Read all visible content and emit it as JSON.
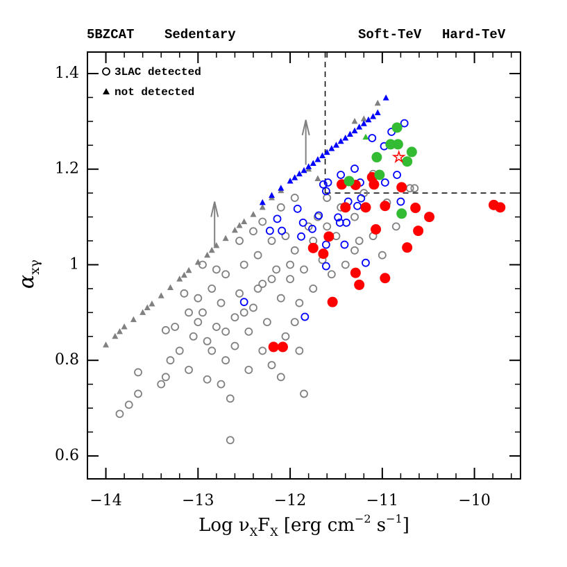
{
  "chart_data": {
    "type": "scatter",
    "xlabel": [
      "Log ν",
      "X",
      "F",
      "X",
      "  [erg cm",
      "−2",
      " s",
      "−1",
      "]"
    ],
    "ylabel": [
      "α",
      "xγ"
    ],
    "xlim": [
      -14.2,
      -9.5
    ],
    "ylim": [
      0.552,
      1.445
    ],
    "xticks": [
      {
        "value": -14,
        "label": "−14"
      },
      {
        "value": -13,
        "label": "−13"
      },
      {
        "value": -12,
        "label": "−12"
      },
      {
        "value": -11,
        "label": "−11"
      },
      {
        "value": -10,
        "label": "−10"
      }
    ],
    "yticks": [
      0.6,
      0.8,
      1,
      1.2,
      1.4
    ],
    "legend": "top",
    "marker_legend": [
      "3LAC detected",
      "not detected"
    ],
    "reference_lines": {
      "x": -11.62,
      "y": 1.15
    },
    "arrows": [
      {
        "x": -12.82,
        "from": 1.038,
        "to": 1.132
      },
      {
        "x": -11.83,
        "from": 1.209,
        "to": 1.303
      }
    ],
    "highlight": {
      "x": -10.82,
      "y": 1.225
    },
    "series": [
      {
        "name": "5BZCAT",
        "color": "#808080",
        "filled": false,
        "detected": {
          "x": [
            -13.85,
            -13.75,
            -13.65,
            -13.65,
            -13.4,
            -13.35,
            -13.35,
            -13.3,
            -13.2,
            -13.1,
            -13.05,
            -13.0,
            -12.95,
            -12.9,
            -12.85,
            -12.8,
            -12.75,
            -12.7,
            -12.7,
            -12.65,
            -12.65,
            -12.6,
            -12.55,
            -12.5,
            -12.45,
            -12.4,
            -12.35,
            -12.3,
            -12.25,
            -12.2,
            -12.15,
            -12.1,
            -12.05,
            -12.0,
            -11.95,
            -11.9,
            -11.85,
            -11.8,
            -11.75,
            -11.7,
            -11.65,
            -11.6,
            -11.55,
            -11.5,
            -11.45,
            -11.4,
            -11.3,
            -11.25,
            -11.2,
            -11.0,
            -10.95,
            -10.85,
            -10.7,
            -11.1,
            -10.65,
            -12.9,
            -13.1,
            -12.8,
            -12.6,
            -12.45,
            -12.3,
            -12.2,
            -12.05,
            -11.95,
            -11.85,
            -12.1,
            -13.25,
            -12.55,
            -12.4,
            -12.3,
            -12.1,
            -11.95,
            -13.0,
            -12.85,
            -12.75,
            -12.95,
            -13.15,
            -12.5,
            -12.2,
            -12.0,
            -11.75,
            -11.6,
            -11.3,
            -11.1,
            -12.7,
            -12.35,
            -11.9
          ],
          "values": [
            0.688,
            0.707,
            0.73,
            0.775,
            0.75,
            0.765,
            0.863,
            0.8,
            0.82,
            0.78,
            0.85,
            0.88,
            0.9,
            0.84,
            0.95,
            0.87,
            0.92,
            0.8,
            0.98,
            0.72,
            0.633,
            0.89,
            0.94,
            1.0,
            0.86,
            0.91,
            1.02,
            0.96,
            0.88,
            1.05,
            0.99,
            0.93,
            1.06,
            0.97,
            1.03,
            0.82,
            0.99,
            1.08,
            0.95,
            1.1,
            1.01,
            1.14,
            0.98,
            1.06,
            1.12,
            1.0,
            1.1,
            1.05,
            1.15,
            1.02,
            1.13,
            1.08,
            1.16,
            1.19,
            1.16,
            0.76,
            0.9,
            0.99,
            0.83,
            0.78,
            0.82,
            0.79,
            0.85,
            0.88,
            0.73,
            0.765,
            0.87,
            1.05,
            1.07,
            1.09,
            1.12,
            1.14,
            0.93,
            0.82,
            0.75,
            1.0,
            0.94,
            0.9,
            0.97,
            1.0,
            1.05,
            1.08,
            1.03,
            1.06,
            0.86,
            0.95,
            0.92
          ]
        },
        "not_detected": {
          "x": [
            -14.0,
            -13.9,
            -13.85,
            -13.8,
            -13.7,
            -13.6,
            -13.55,
            -13.5,
            -13.4,
            -13.3,
            -13.2,
            -13.15,
            -13.1,
            -13.0,
            -12.9,
            -12.85,
            -12.8,
            -12.7,
            -12.6,
            -12.55,
            -12.5,
            -12.4,
            -12.3,
            -12.2,
            -12.1,
            -11.8,
            -11.3,
            -11.2,
            -11.05,
            -11.7
          ],
          "values": [
            0.832,
            0.85,
            0.86,
            0.87,
            0.885,
            0.9,
            0.91,
            0.918,
            0.935,
            0.952,
            0.97,
            0.978,
            0.988,
            1.005,
            1.02,
            1.03,
            1.04,
            1.055,
            1.072,
            1.082,
            1.09,
            1.105,
            1.12,
            1.14,
            1.155,
            1.2,
            1.3,
            1.305,
            1.338,
            1.18
          ]
        }
      },
      {
        "name": "Sedentary",
        "color": "#0000ff",
        "filled": false,
        "detected": {
          "x": [
            -10.76,
            -10.9,
            -11.11,
            -10.98,
            -11.3,
            -11.45,
            -11.24,
            -11.61,
            -11.59,
            -11.92,
            -12.09,
            -12.22,
            -11.86,
            -11.76,
            -11.61,
            -11.46,
            -11.39,
            -11.27,
            -11.37,
            -11.48,
            -10.97,
            -10.8,
            -10.84,
            -11.23,
            -11.61,
            -11.41,
            -11.18,
            -11.84,
            -12.5,
            -11.64,
            -12.14,
            -11.88,
            -11.69
          ],
          "values": [
            1.296,
            1.278,
            1.265,
            1.248,
            1.201,
            1.188,
            1.172,
            1.154,
            1.172,
            1.117,
            1.071,
            1.071,
            1.088,
            1.075,
            1.042,
            1.088,
            1.088,
            1.123,
            1.132,
            1.099,
            1.172,
            1.132,
            1.188,
            1.139,
            0.997,
            1.042,
            1.004,
            0.891,
            0.922,
            1.168,
            1.096,
            1.059,
            1.103
          ]
        },
        "not_detected": {
          "x": [
            -12.3,
            -12.2,
            -12.1,
            -12.0,
            -11.95,
            -11.9,
            -11.85,
            -11.8,
            -11.75,
            -11.7,
            -11.65,
            -11.6,
            -11.55,
            -11.5,
            -11.45,
            -11.4,
            -11.35,
            -11.3,
            -11.25,
            -11.2,
            -11.15,
            -11.1,
            -11.05,
            -10.96
          ],
          "values": [
            1.13,
            1.145,
            1.16,
            1.175,
            1.182,
            1.19,
            1.197,
            1.205,
            1.212,
            1.22,
            1.228,
            1.235,
            1.243,
            1.25,
            1.258,
            1.265,
            1.273,
            1.28,
            1.288,
            1.295,
            1.303,
            1.31,
            1.318,
            1.349
          ]
        }
      },
      {
        "name": "Soft-TeV",
        "color": "#ff0000",
        "filled": true,
        "detected": {
          "x": [
            -11.44,
            -11.4,
            -11.29,
            -11.11,
            -11.09,
            -11.18,
            -11.58,
            -11.75,
            -11.64,
            -11.07,
            -10.97,
            -10.79,
            -10.64,
            -10.49,
            -10.61,
            -10.73,
            -11.29,
            -11.25,
            -10.97,
            -11.54,
            -12.18,
            -12.08,
            -9.79,
            -9.72
          ],
          "values": [
            1.168,
            1.12,
            1.167,
            1.183,
            1.168,
            1.12,
            1.059,
            1.035,
            1.023,
            1.074,
            1.123,
            1.162,
            1.119,
            1.1,
            1.071,
            1.036,
            0.983,
            0.958,
            0.972,
            0.922,
            0.828,
            0.828,
            1.125,
            1.12
          ]
        }
      },
      {
        "name": "Hard-TeV",
        "color": "#33bb33",
        "filled": true,
        "detected": {
          "x": [
            -10.84,
            -10.91,
            -10.83,
            -10.68,
            -10.73,
            -11.06,
            -11.03,
            -11.36,
            -10.79
          ],
          "values": [
            1.287,
            1.252,
            1.252,
            1.236,
            1.216,
            1.225,
            1.188,
            1.175,
            1.107
          ]
        },
        "not_detected": {
          "x": [
            -11.18
          ],
          "values": [
            1.267
          ]
        }
      }
    ]
  }
}
